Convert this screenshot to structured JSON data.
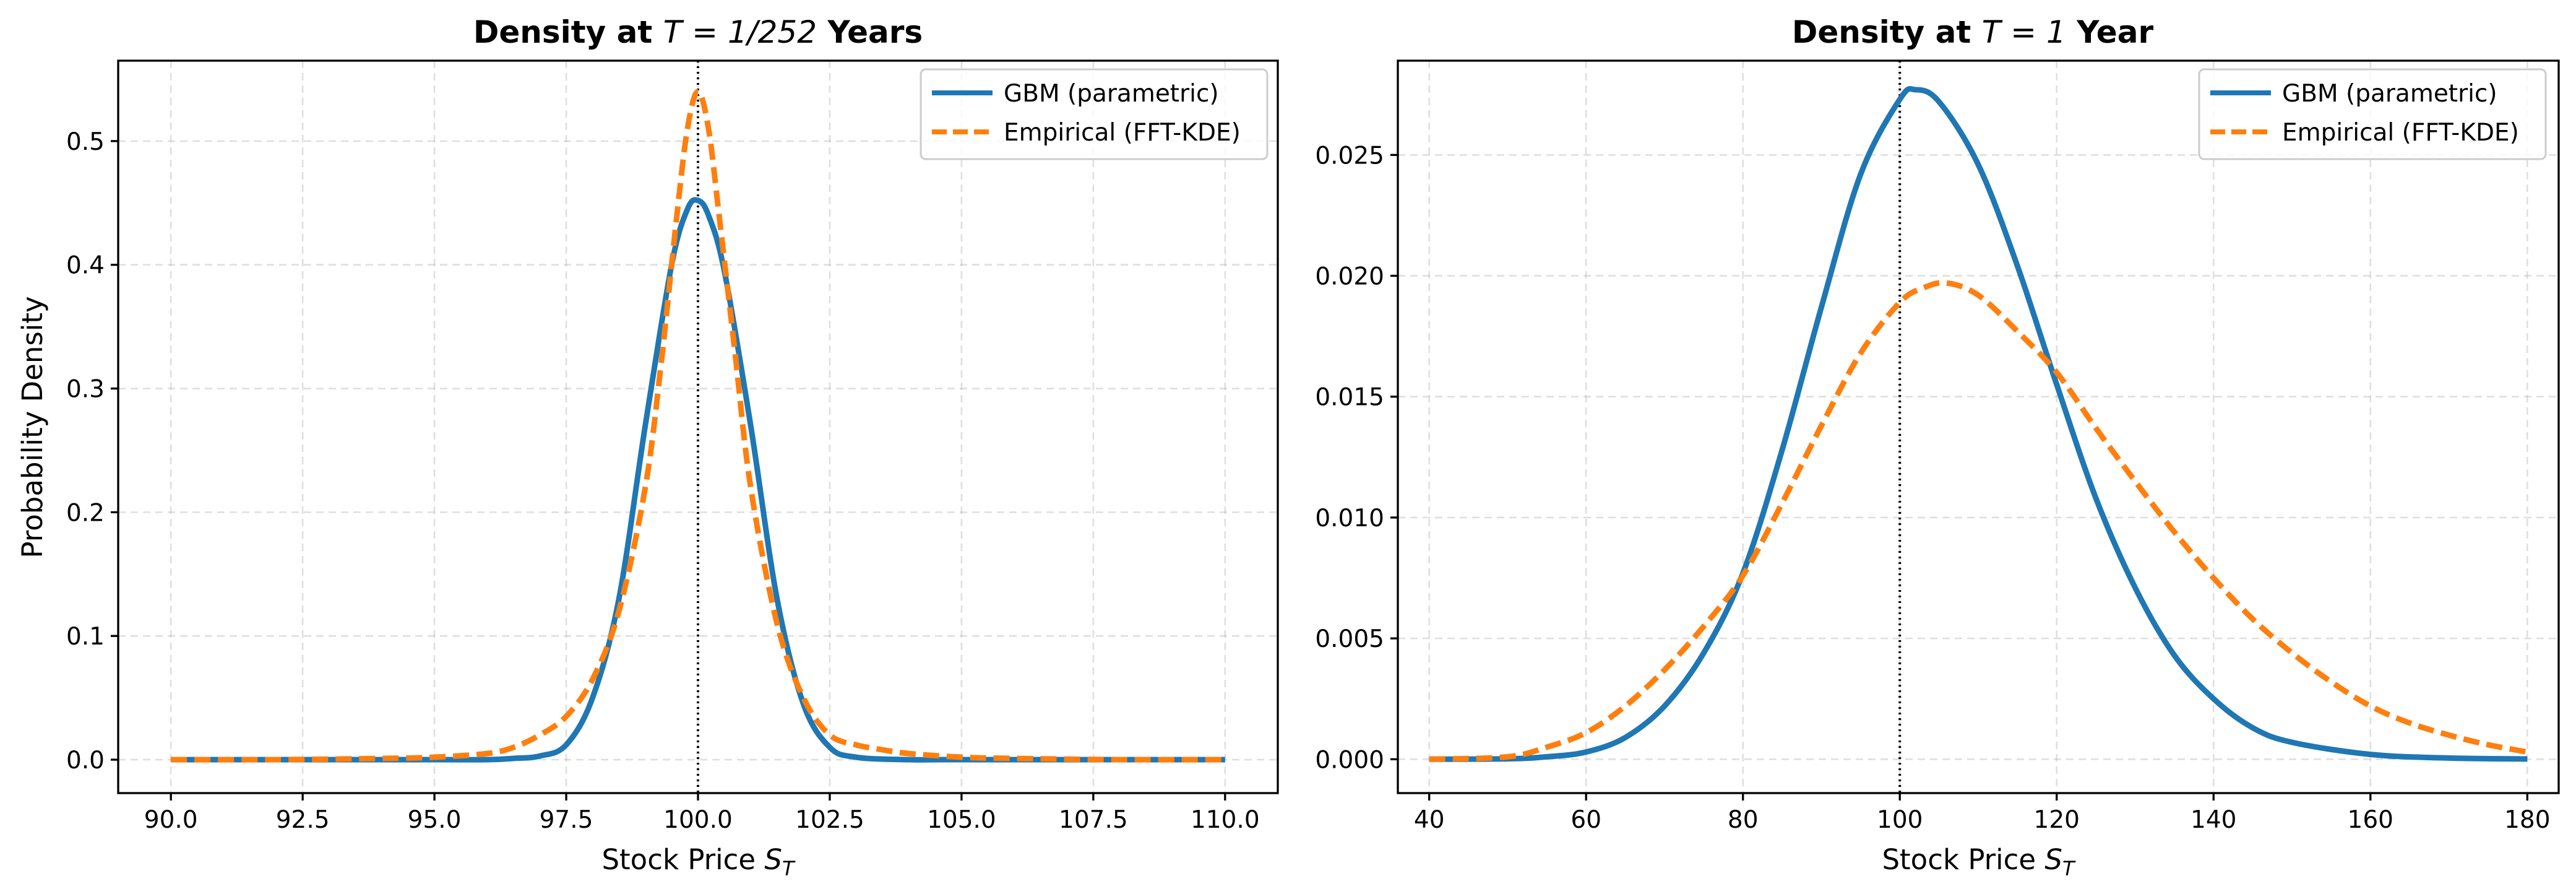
{
  "figure": {
    "ylabel_left": "Probability Density"
  },
  "colors": {
    "gbm": "#1f77b4",
    "empirical": "#ff7f0e"
  },
  "chart_data": [
    {
      "type": "line",
      "title_prefix": "Density at ",
      "title_math": "T = 1/252",
      "title_suffix": " Years",
      "xlabel": "Stock Price S_T",
      "ylabel": "Probability Density",
      "xlim": [
        89.0,
        111.0
      ],
      "ylim": [
        -0.027,
        0.565
      ],
      "xticks": [
        90.0,
        92.5,
        95.0,
        97.5,
        100.0,
        102.5,
        105.0,
        107.5,
        110.0
      ],
      "xtick_labels": [
        "90.0",
        "92.5",
        "95.0",
        "97.5",
        "100.0",
        "102.5",
        "105.0",
        "107.5",
        "110.0"
      ],
      "yticks": [
        0.0,
        0.1,
        0.2,
        0.3,
        0.4,
        0.5
      ],
      "ytick_labels": [
        "0.0",
        "0.1",
        "0.2",
        "0.3",
        "0.4",
        "0.5"
      ],
      "grid": true,
      "legend_position": "upper right",
      "reference_line_x": 100,
      "series": [
        {
          "name": "GBM (parametric)",
          "style": "solid",
          "x": [
            90,
            95,
            96,
            96.5,
            97,
            97.5,
            98,
            98.5,
            99,
            99.5,
            99.8,
            100,
            100.2,
            100.5,
            101,
            101.5,
            102,
            102.5,
            103,
            104,
            105,
            110
          ],
          "y": [
            0,
            0,
            0,
            0.001,
            0.003,
            0.012,
            0.05,
            0.13,
            0.27,
            0.4,
            0.445,
            0.452,
            0.44,
            0.395,
            0.27,
            0.13,
            0.045,
            0.01,
            0.002,
            0,
            0,
            0
          ]
        },
        {
          "name": "Empirical (FFT-KDE)",
          "style": "dashed",
          "x": [
            90,
            92,
            94,
            95,
            96,
            96.5,
            97,
            97.5,
            98,
            98.5,
            99,
            99.3,
            99.6,
            99.8,
            100,
            100.2,
            100.4,
            100.7,
            101,
            101.5,
            102,
            102.5,
            103,
            103.5,
            104,
            105,
            106,
            108,
            110
          ],
          "y": [
            0,
            0,
            0.001,
            0.002,
            0.005,
            0.01,
            0.02,
            0.035,
            0.065,
            0.12,
            0.22,
            0.32,
            0.44,
            0.51,
            0.54,
            0.51,
            0.44,
            0.33,
            0.22,
            0.11,
            0.05,
            0.02,
            0.012,
            0.008,
            0.005,
            0.002,
            0.001,
            0,
            0
          ]
        }
      ]
    },
    {
      "type": "line",
      "title_prefix": "Density at ",
      "title_math": "T = 1",
      "title_suffix": " Year",
      "xlabel": "Stock Price S_T",
      "ylabel": "",
      "xlim": [
        36.0,
        184.0
      ],
      "ylim": [
        -0.0014,
        0.0289
      ],
      "xticks": [
        40,
        60,
        80,
        100,
        120,
        140,
        160,
        180
      ],
      "xtick_labels": [
        "40",
        "60",
        "80",
        "100",
        "120",
        "140",
        "160",
        "180"
      ],
      "yticks": [
        0.0,
        0.005,
        0.01,
        0.015,
        0.02,
        0.025
      ],
      "ytick_labels": [
        "0.000",
        "0.005",
        "0.010",
        "0.015",
        "0.020",
        "0.025"
      ],
      "grid": true,
      "legend_position": "upper right",
      "reference_line_x": 100,
      "series": [
        {
          "name": "GBM (parametric)",
          "style": "solid",
          "x": [
            40,
            50,
            55,
            60,
            65,
            70,
            75,
            80,
            85,
            90,
            95,
            100,
            102,
            105,
            110,
            115,
            120,
            125,
            130,
            135,
            140,
            145,
            150,
            160,
            170,
            180
          ],
          "y": [
            0,
            2e-05,
            0.0001,
            0.0003,
            0.0009,
            0.0022,
            0.0044,
            0.0077,
            0.0128,
            0.0187,
            0.0242,
            0.0273,
            0.0277,
            0.0272,
            0.0246,
            0.0204,
            0.0155,
            0.0108,
            0.0071,
            0.0043,
            0.0025,
            0.0013,
            0.0007,
            0.0002,
            5e-05,
            1e-05
          ]
        },
        {
          "name": "Empirical (FFT-KDE)",
          "style": "dashed",
          "x": [
            40,
            50,
            55,
            60,
            65,
            70,
            75,
            80,
            85,
            90,
            95,
            100,
            103,
            106,
            110,
            115,
            120,
            125,
            130,
            135,
            140,
            145,
            150,
            155,
            160,
            165,
            170,
            175,
            180
          ],
          "y": [
            0,
            0.0001,
            0.0005,
            0.0011,
            0.0022,
            0.0037,
            0.0055,
            0.0076,
            0.0106,
            0.0138,
            0.0168,
            0.0189,
            0.0195,
            0.0197,
            0.0192,
            0.0177,
            0.016,
            0.0137,
            0.0115,
            0.0094,
            0.0075,
            0.0058,
            0.0044,
            0.0032,
            0.0022,
            0.0015,
            0.001,
            0.0006,
            0.0003
          ]
        }
      ]
    }
  ]
}
